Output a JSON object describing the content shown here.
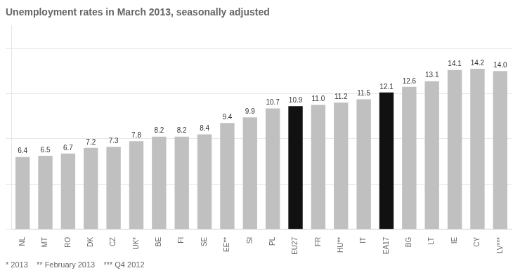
{
  "chart_data": {
    "type": "bar",
    "title": "Unemployment rates in March 2013, seasonally adjusted",
    "annotations": [
      "* 2013    ** February 2013    *** Q4 2012"
    ],
    "categories": [
      "NL",
      "MT",
      "RO",
      "DK",
      "CZ",
      "UK*",
      "BE",
      "FI",
      "SE",
      "EE**",
      "SI",
      "PL",
      "EU27",
      "FR",
      "HU**",
      "IT",
      "EA17",
      "BG",
      "LT",
      "IE",
      "CY",
      "LV***"
    ],
    "values": [
      6.4,
      6.5,
      6.7,
      7.2,
      7.3,
      7.8,
      8.2,
      8.2,
      8.4,
      9.4,
      9.9,
      10.7,
      10.9,
      11.0,
      11.2,
      11.5,
      12.1,
      12.6,
      13.1,
      14.1,
      14.2,
      14.0
    ],
    "value_labels": [
      "6.4",
      "6.5",
      "6.7",
      "7.2",
      "7.3",
      "7.8",
      "8.2",
      "8.2",
      "8.4",
      "9.4",
      "9.9",
      "10.7",
      "10.9",
      "11.0",
      "11.2",
      "11.5",
      "12.1",
      "12.6",
      "13.1",
      "14.1",
      "14.2",
      "14.0"
    ],
    "colors": [
      "#c0c0c0",
      "#c0c0c0",
      "#c0c0c0",
      "#c0c0c0",
      "#c0c0c0",
      "#c0c0c0",
      "#c0c0c0",
      "#c0c0c0",
      "#c0c0c0",
      "#c0c0c0",
      "#c0c0c0",
      "#c0c0c0",
      "#111111",
      "#c0c0c0",
      "#c0c0c0",
      "#c0c0c0",
      "#111111",
      "#c0c0c0",
      "#c0c0c0",
      "#c0c0c0",
      "#c0c0c0",
      "#c0c0c0"
    ],
    "ylim": [
      0,
      18
    ],
    "yticks": [
      0,
      4,
      8,
      12,
      16
    ],
    "grid": true,
    "data_labels": true,
    "tick_labels": "x"
  }
}
